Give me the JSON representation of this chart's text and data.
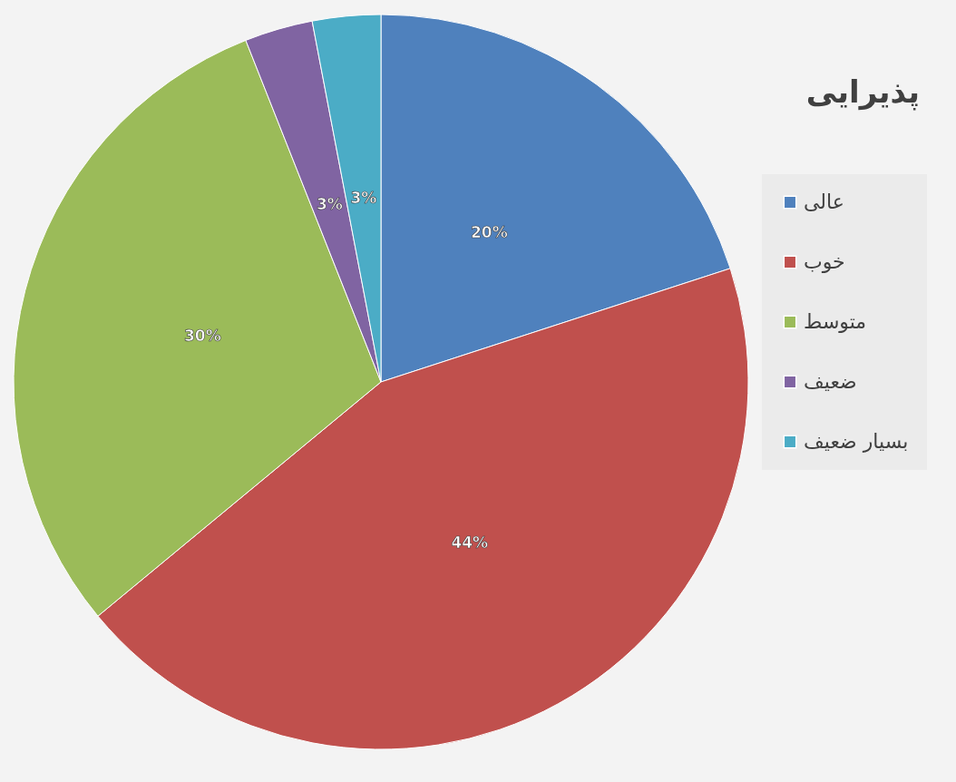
{
  "chart_data": {
    "type": "pie",
    "title": "پذیرایی",
    "categories": [
      "عالی",
      "خوب",
      "متوسط",
      "ضعیف",
      "بسیار ضعیف"
    ],
    "values": [
      20,
      44,
      30,
      3,
      3
    ],
    "colors": [
      "#4f81bd",
      "#c0504d",
      "#9bbb59",
      "#8064a2",
      "#4bacc6"
    ],
    "value_labels": [
      "20%",
      "44%",
      "30%",
      "3%",
      "3%"
    ],
    "legend": "right"
  }
}
